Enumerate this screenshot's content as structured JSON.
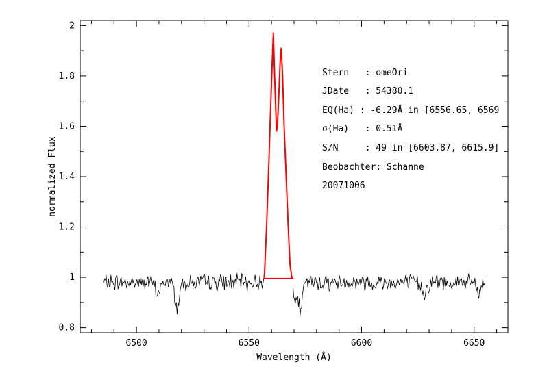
{
  "chart_data": {
    "type": "line",
    "xlabel": "Wavelength (Å)",
    "ylabel": "normalized Flux",
    "xlim": [
      6475,
      6665
    ],
    "ylim": [
      0.78,
      2.02
    ],
    "x_ticks": [
      6500,
      6550,
      6600,
      6650
    ],
    "x_tick_labels": [
      "6500",
      "6550",
      "6600",
      "6650"
    ],
    "y_ticks": [
      0.8,
      1.0,
      1.2,
      1.4,
      1.6,
      1.8,
      2.0
    ],
    "y_tick_labels": [
      "0.8",
      "1",
      "1.2",
      "1.4",
      "1.6",
      "1.8",
      "2"
    ],
    "grid": false,
    "series": [
      {
        "role": "spectrum",
        "color": "#000000",
        "x_start": 6485.5,
        "x_end": 6655.0,
        "x_step": 0.35,
        "baseline": 0.98,
        "noise": 0.025,
        "features": [
          {
            "center": 6518.0,
            "depth": 0.1,
            "width": 0.9
          },
          {
            "center": 6509.5,
            "depth": 0.04,
            "width": 1.2
          },
          {
            "center": 6573.0,
            "depth": 0.1,
            "width": 0.8
          },
          {
            "center": 6571.0,
            "depth": 0.05,
            "width": 1.2
          },
          {
            "center": 6628.0,
            "depth": 0.04,
            "width": 1.2
          },
          {
            "center": 6652.0,
            "depth": 0.05,
            "width": 0.8
          }
        ]
      },
      {
        "role": "h-alpha-emission",
        "color": "#ff0000",
        "points": [
          [
            6556.65,
            0.995
          ],
          [
            6556.9,
            1.02
          ],
          [
            6557.8,
            1.2
          ],
          [
            6558.8,
            1.45
          ],
          [
            6559.7,
            1.7
          ],
          [
            6560.3,
            1.85
          ],
          [
            6560.8,
            1.97
          ],
          [
            6561.3,
            1.82
          ],
          [
            6561.8,
            1.68
          ],
          [
            6562.2,
            1.58
          ],
          [
            6562.6,
            1.6
          ],
          [
            6563.2,
            1.72
          ],
          [
            6563.8,
            1.85
          ],
          [
            6564.3,
            1.91
          ],
          [
            6564.9,
            1.8
          ],
          [
            6565.6,
            1.6
          ],
          [
            6566.5,
            1.4
          ],
          [
            6567.4,
            1.2
          ],
          [
            6568.2,
            1.05
          ],
          [
            6569.0,
            1.0
          ],
          [
            6569.5,
            0.995
          ],
          [
            6556.65,
            0.995
          ]
        ]
      }
    ],
    "annotations": [
      "Stern   : omeOri",
      "JDate   : 54380.1",
      "EQ(Ha) : -6.29Å in [6556.65, 6569",
      "σ(Ha)   : 0.51Å",
      "S/N     : 49 in [6603.87, 6615.9]",
      "Beobachter: Schanne",
      "20071006"
    ]
  }
}
